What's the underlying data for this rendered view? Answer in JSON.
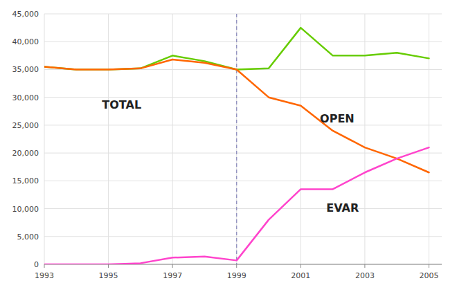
{
  "chart_data": {
    "type": "line",
    "x": [
      1993,
      1994,
      1995,
      1996,
      1997,
      1998,
      1999,
      2000,
      2001,
      2002,
      2003,
      2004,
      2005
    ],
    "series": [
      {
        "name": "TOTAL",
        "color": "#66cc00",
        "values": [
          35500,
          35000,
          35000,
          35200,
          37500,
          36500,
          35000,
          35200,
          42500,
          37500,
          37500,
          38000,
          37000
        ]
      },
      {
        "name": "OPEN",
        "color": "#ff6600",
        "values": [
          35500,
          35000,
          35000,
          35200,
          36800,
          36200,
          35000,
          30000,
          28500,
          24000,
          21000,
          19000,
          16500
        ]
      },
      {
        "name": "EVAR",
        "color": "#ff44cc",
        "values": [
          0,
          0,
          0,
          200,
          1200,
          1400,
          700,
          8000,
          13500,
          13500,
          16500,
          19000,
          21000
        ]
      }
    ],
    "annotations": [
      {
        "text": "TOTAL",
        "x": 1994.8,
        "y": 28000
      },
      {
        "text": "OPEN",
        "x": 2001.6,
        "y": 25500
      },
      {
        "text": "EVAR",
        "x": 2001.8,
        "y": 9500
      }
    ],
    "vlines": [
      1999
    ],
    "xlim": [
      1993,
      2005.4
    ],
    "ylim": [
      0,
      45000
    ],
    "xticks": [
      1993,
      1995,
      1997,
      1999,
      2001,
      2003,
      2005
    ],
    "yticks": [
      0,
      {
        "value": 5000,
        "label": "5,000"
      },
      {
        "value": 10000,
        "label": "10,000"
      },
      {
        "value": 15000,
        "label": "15,000"
      },
      {
        "value": 20000,
        "label": "20,000"
      },
      {
        "value": 25000,
        "label": "25,000"
      },
      {
        "value": 30000,
        "label": "30,000"
      },
      {
        "value": 35000,
        "label": "35,000"
      },
      {
        "value": 40000,
        "label": "40,000"
      },
      {
        "value": 45000,
        "label": "45,000"
      }
    ],
    "grid": true
  }
}
